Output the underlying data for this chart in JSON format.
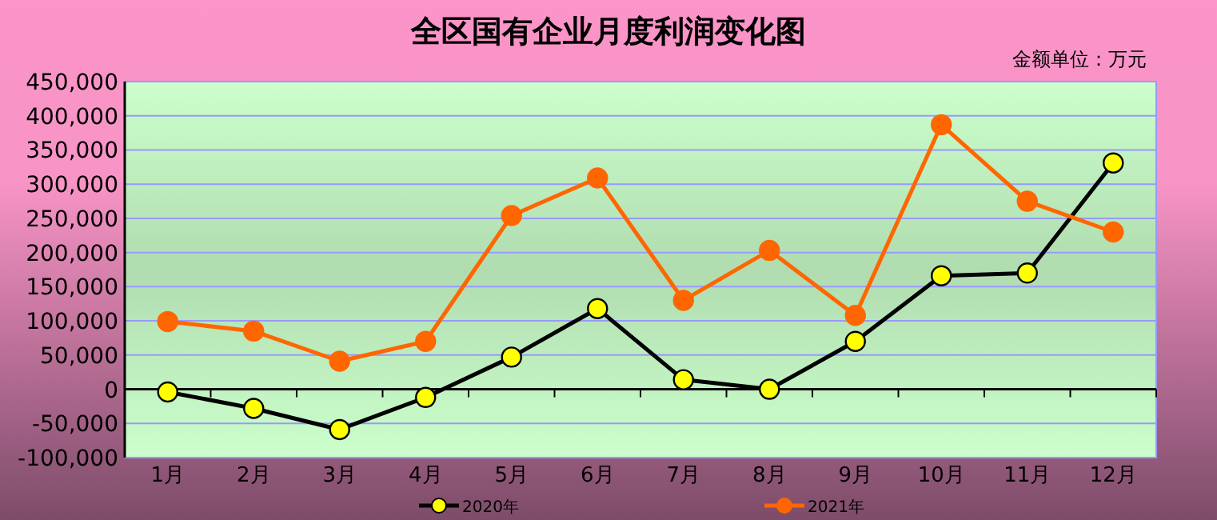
{
  "chart_data": {
    "type": "line",
    "title": "全区国有企业月度利润变化图",
    "annotations": [
      "金额单位：万元"
    ],
    "categories": [
      "1月",
      "2月",
      "3月",
      "4月",
      "5月",
      "6月",
      "7月",
      "8月",
      "9月",
      "10月",
      "11月",
      "12月"
    ],
    "series": [
      {
        "name": "2020年",
        "color": "#000000",
        "colors": [
          "#ffff00",
          "#ffff00",
          "#ffff00",
          "#ffff00",
          "#ffff00",
          "#ffff00",
          "#ffff00",
          "#ffff00",
          "#ffff00",
          "#ffff00",
          "#ffff00",
          "#ffff00"
        ],
        "values": [
          -4000,
          -28000,
          -59000,
          -12000,
          47000,
          118000,
          14000,
          0,
          70000,
          166000,
          170000,
          331000
        ]
      },
      {
        "name": "2021年",
        "color": "#ff6600",
        "values": [
          99000,
          85000,
          41000,
          70000,
          254000,
          309000,
          130000,
          203000,
          108000,
          387000,
          275000,
          230000
        ]
      }
    ],
    "ylim": [
      -100000,
      450000
    ],
    "yticks": [
      {
        "value": -100000,
        "label": "-100,000"
      },
      {
        "value": -50000,
        "label": "-50,000"
      },
      {
        "value": 0,
        "label": "0"
      },
      {
        "value": 50000,
        "label": "50,000"
      },
      {
        "value": 100000,
        "label": "100,000"
      },
      {
        "value": 150000,
        "label": "150,000"
      },
      {
        "value": 200000,
        "label": "200,000"
      },
      {
        "value": 250000,
        "label": "250,000"
      },
      {
        "value": 300000,
        "label": "300,000"
      },
      {
        "value": 350000,
        "label": "350,000"
      },
      {
        "value": 400000,
        "label": "400,000"
      },
      {
        "value": 450000,
        "label": "450,000"
      }
    ],
    "grid": "y",
    "legend": "bottom",
    "marker": "circle",
    "line_style": "solid"
  }
}
